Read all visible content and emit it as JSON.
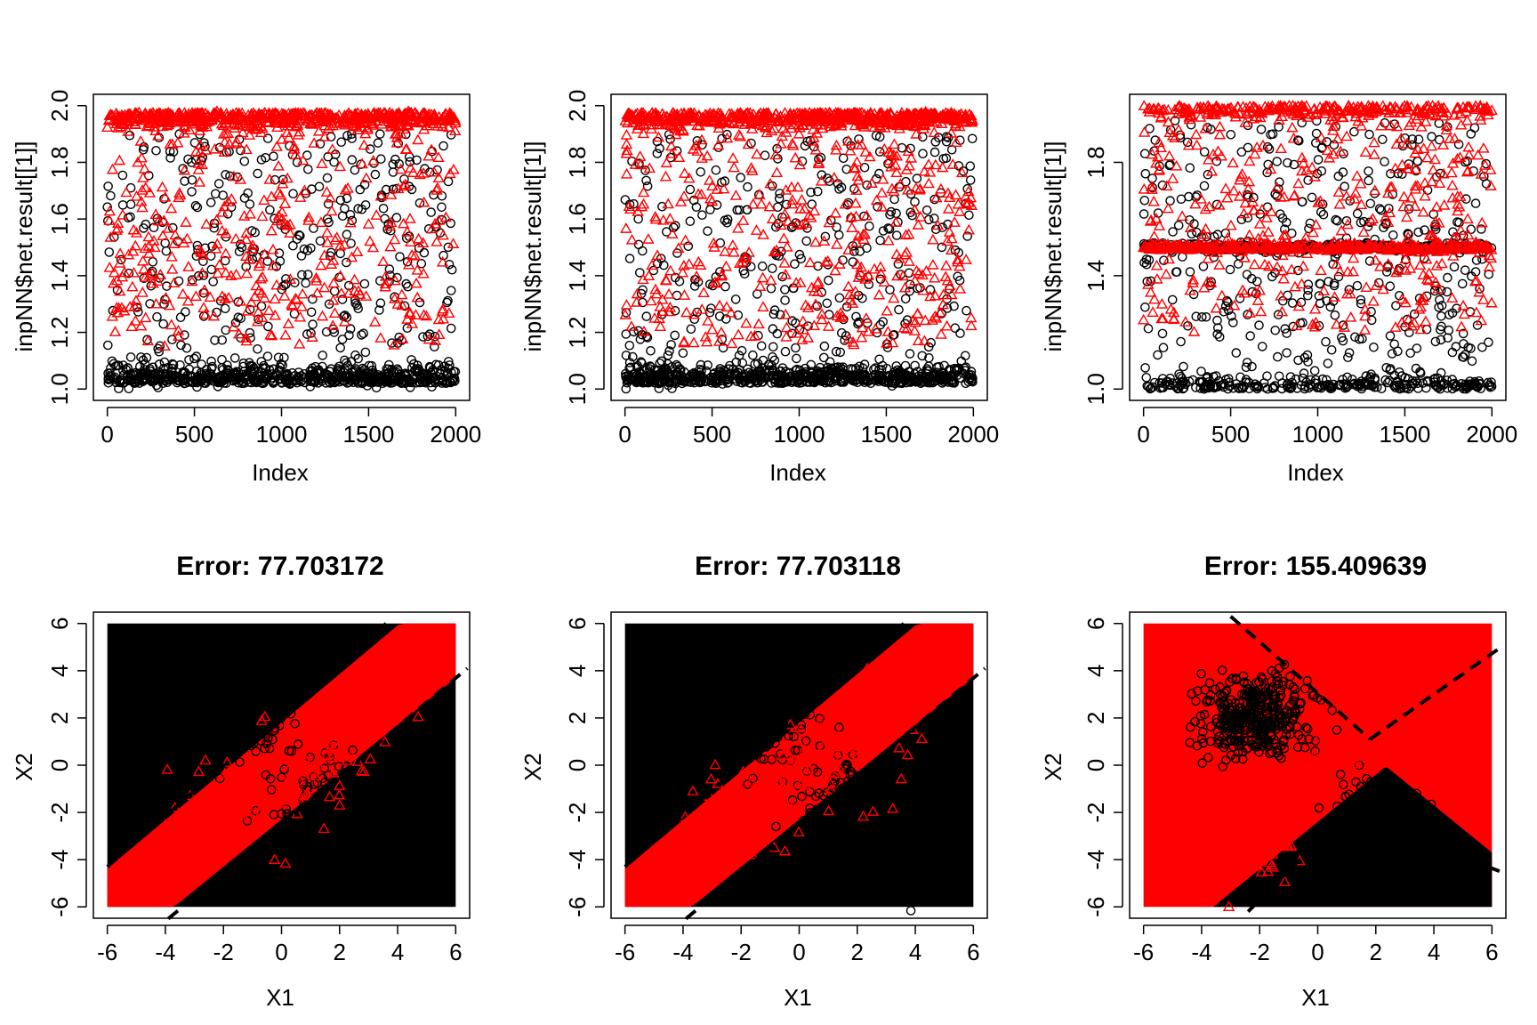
{
  "colors": {
    "class_a": "#000000",
    "class_b": "#ff0000",
    "boundary": "#000000"
  },
  "chart_data": [
    {
      "type": "scatter",
      "title": "",
      "xlabel": "Index",
      "ylabel": "inpNN$net.result[[1]]",
      "xlim": [
        0,
        2000
      ],
      "ylim": [
        1.0,
        2.0
      ],
      "xticks": [
        "0",
        "500",
        "1000",
        "1500",
        "2000"
      ],
      "yticks": [
        "1.0",
        "1.2",
        "1.4",
        "1.6",
        "1.8",
        "2.0"
      ],
      "grid": false,
      "series": [
        {
          "marker": "circle",
          "color": "#000000",
          "n": 1000,
          "y_cluster": 1.02,
          "y_cluster_spread": 0.03,
          "y_spread_range": [
            1.0,
            1.9
          ]
        },
        {
          "marker": "triangle",
          "color": "#ff0000",
          "n": 1000,
          "y_cluster": 1.975,
          "y_cluster_spread": 0.025,
          "y_spread_range": [
            1.15,
            1.98
          ]
        }
      ]
    },
    {
      "type": "scatter",
      "title": "",
      "xlabel": "Index",
      "ylabel": "inpNN$net.result[[1]]",
      "xlim": [
        0,
        2000
      ],
      "ylim": [
        1.0,
        2.0
      ],
      "xticks": [
        "0",
        "500",
        "1000",
        "1500",
        "2000"
      ],
      "yticks": [
        "1.0",
        "1.2",
        "1.4",
        "1.6",
        "1.8",
        "2.0"
      ],
      "grid": false,
      "series": [
        {
          "marker": "circle",
          "color": "#000000",
          "n": 1000,
          "y_cluster": 1.02,
          "y_cluster_spread": 0.03,
          "y_spread_range": [
            1.0,
            1.9
          ]
        },
        {
          "marker": "triangle",
          "color": "#ff0000",
          "n": 1000,
          "y_cluster": 1.975,
          "y_cluster_spread": 0.025,
          "y_spread_range": [
            1.15,
            1.98
          ]
        }
      ]
    },
    {
      "type": "scatter",
      "title": "",
      "xlabel": "Index",
      "ylabel": "inpNN$net.result[[1]]",
      "xlim": [
        0,
        2000
      ],
      "ylim": [
        1.0,
        2.0
      ],
      "xticks": [
        "0",
        "500",
        "1000",
        "1500",
        "2000"
      ],
      "yticks": [
        "1.0",
        "1.4",
        "1.8"
      ],
      "grid": false,
      "series": [
        {
          "marker": "circle",
          "color": "#000000",
          "n": 1000,
          "y_cluster": 1.0,
          "y_cluster_spread": 0.02,
          "y_band": 1.5,
          "y_spread_range": [
            1.0,
            1.95
          ]
        },
        {
          "marker": "triangle",
          "color": "#ff0000",
          "n": 1000,
          "y_cluster": 2.0,
          "y_cluster_spread": 0.02,
          "y_band": 1.5,
          "y_spread_range": [
            1.2,
            2.0
          ]
        }
      ]
    },
    {
      "type": "scatter",
      "title": "Error: 77.703172",
      "xlabel": "X1",
      "ylabel": "X2",
      "xlim": [
        -6,
        6
      ],
      "ylim": [
        -6,
        6
      ],
      "xticks": [
        "-6",
        "-4",
        "-2",
        "0",
        "2",
        "4",
        "6"
      ],
      "yticks": [
        "-6",
        "-4",
        "-2",
        "0",
        "2",
        "4",
        "6"
      ],
      "grid": false,
      "regions": {
        "inside_color": "#ff0000",
        "outside_color": "#000000",
        "band_lines": [
          {
            "intercept": 1.8,
            "slope": 1.03
          },
          {
            "intercept": -2.3,
            "slope": 1.0
          }
        ]
      },
      "boundary_lines": [
        {
          "p1": [
            -6,
            -4.3
          ],
          "p2": [
            3.6,
            6.0
          ]
        },
        {
          "p1": [
            -3.9,
            -6.5
          ],
          "p2": [
            6.4,
            4.1
          ]
        }
      ],
      "series": [
        {
          "marker": "circle",
          "color": "#000000",
          "clusters": [
            {
              "center": [
                -2,
                2
              ],
              "sd": 1.0,
              "n": 350
            },
            {
              "center": [
                2,
                -2
              ],
              "sd": 1.0,
              "n": 350
            }
          ]
        },
        {
          "marker": "triangle",
          "color": "#ff0000",
          "clusters": [
            {
              "center": [
                -2,
                -2
              ],
              "sd": 1.1,
              "n": 40
            },
            {
              "center": [
                1,
                0
              ],
              "sd": 1.0,
              "n": 40
            },
            {
              "center": [
                2.5,
                1.5
              ],
              "sd": 1.0,
              "n": 25
            }
          ]
        }
      ]
    },
    {
      "type": "scatter",
      "title": "Error: 77.703118",
      "xlabel": "X1",
      "ylabel": "X2",
      "xlim": [
        -6,
        6
      ],
      "ylim": [
        -6,
        6
      ],
      "xticks": [
        "-6",
        "-4",
        "-2",
        "0",
        "2",
        "4",
        "6"
      ],
      "yticks": [
        "-6",
        "-4",
        "-2",
        "0",
        "2",
        "4",
        "6"
      ],
      "grid": false,
      "regions": {
        "inside_color": "#ff0000",
        "outside_color": "#000000",
        "band_lines": [
          {
            "intercept": 1.8,
            "slope": 1.03
          },
          {
            "intercept": -2.3,
            "slope": 1.0
          }
        ]
      },
      "boundary_lines": [
        {
          "p1": [
            -6,
            -4.3
          ],
          "p2": [
            3.6,
            6.0
          ]
        },
        {
          "p1": [
            -3.9,
            -6.5
          ],
          "p2": [
            6.4,
            4.1
          ]
        }
      ],
      "series": [
        {
          "marker": "circle",
          "color": "#000000",
          "clusters": [
            {
              "center": [
                -2,
                2
              ],
              "sd": 1.0,
              "n": 350
            },
            {
              "center": [
                2,
                -2
              ],
              "sd": 1.0,
              "n": 350
            }
          ]
        },
        {
          "marker": "triangle",
          "color": "#ff0000",
          "clusters": [
            {
              "center": [
                -2,
                -2
              ],
              "sd": 1.1,
              "n": 40
            },
            {
              "center": [
                1,
                0
              ],
              "sd": 1.0,
              "n": 40
            },
            {
              "center": [
                2.5,
                1.5
              ],
              "sd": 1.0,
              "n": 25
            }
          ]
        }
      ]
    },
    {
      "type": "scatter",
      "title": "Error: 155.409639",
      "xlabel": "X1",
      "ylabel": "X2",
      "xlim": [
        -6,
        6
      ],
      "ylim": [
        -6,
        6
      ],
      "xticks": [
        "-6",
        "-4",
        "-2",
        "0",
        "2",
        "4",
        "6"
      ],
      "yticks": [
        "-6",
        "-4",
        "-2",
        "0",
        "2",
        "4",
        "6"
      ],
      "grid": false,
      "regions": {
        "inside_color": "#000000",
        "outside_color": "#ff0000",
        "wedge": {
          "left_line": {
            "intercept": 2.3,
            "slope": -1.0
          },
          "right_line": {
            "intercept": -2.4,
            "slope": 1.0
          }
        }
      },
      "boundary_lines": [
        {
          "p1": [
            -3.0,
            6.3
          ],
          "p2": [
            1.8,
            1.1
          ]
        },
        {
          "p1": [
            1.8,
            1.1
          ],
          "p2": [
            6.2,
            4.9
          ]
        },
        {
          "p1": [
            -2.4,
            -6.2
          ],
          "p2": [
            0.5,
            -2.6
          ]
        },
        {
          "p1": [
            5.2,
            -4.0
          ],
          "p2": [
            6.5,
            -4.6
          ]
        }
      ],
      "series": [
        {
          "marker": "circle",
          "color": "#000000",
          "clusters": [
            {
              "center": [
                -2.2,
                2.0
              ],
              "sd": 0.9,
              "n": 400
            },
            {
              "center": [
                2,
                -2
              ],
              "sd": 0.8,
              "n": 80
            }
          ]
        },
        {
          "marker": "triangle",
          "color": "#ff0000",
          "clusters": [
            {
              "center": [
                -1.8,
                -3.5
              ],
              "sd": 0.7,
              "n": 40
            },
            {
              "center": [
                0.5,
                0.5
              ],
              "sd": 0.6,
              "n": 20
            }
          ]
        }
      ]
    }
  ]
}
